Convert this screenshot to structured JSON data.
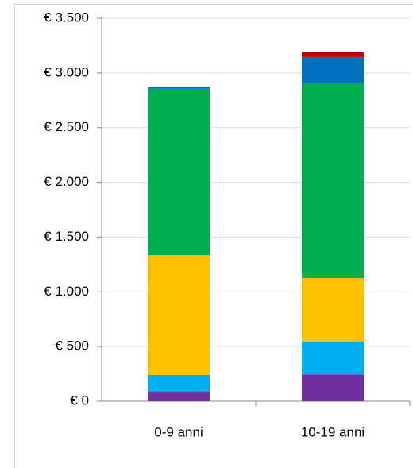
{
  "chart_data": {
    "type": "stacked_bar",
    "categories": [
      "0-9 anni",
      "10-19 anni"
    ],
    "series": [
      {
        "color": "#7030a0",
        "values": [
          90,
          245
        ]
      },
      {
        "color": "#00b0f0",
        "values": [
          150,
          300
        ]
      },
      {
        "color": "#ffc000",
        "values": [
          1095,
          580
        ]
      },
      {
        "color": "#00b050",
        "values": [
          1520,
          1785
        ]
      },
      {
        "color": "#0070c0",
        "values": [
          15,
          235
        ]
      },
      {
        "color": "#c00000",
        "values": [
          0,
          45
        ]
      }
    ],
    "ylim": [
      0,
      3500
    ],
    "yticks": [
      {
        "value": 0,
        "label": "€ 0"
      },
      {
        "value": 500,
        "label": "€ 500"
      },
      {
        "value": 1000,
        "label": "€ 1.000"
      },
      {
        "value": 1500,
        "label": "€ 1.500"
      },
      {
        "value": 2000,
        "label": "€ 2.000"
      },
      {
        "value": 2500,
        "label": "€ 2.500"
      },
      {
        "value": 3000,
        "label": "€ 3.000"
      },
      {
        "value": 3500,
        "label": "€ 3.500"
      }
    ],
    "grid": true
  }
}
